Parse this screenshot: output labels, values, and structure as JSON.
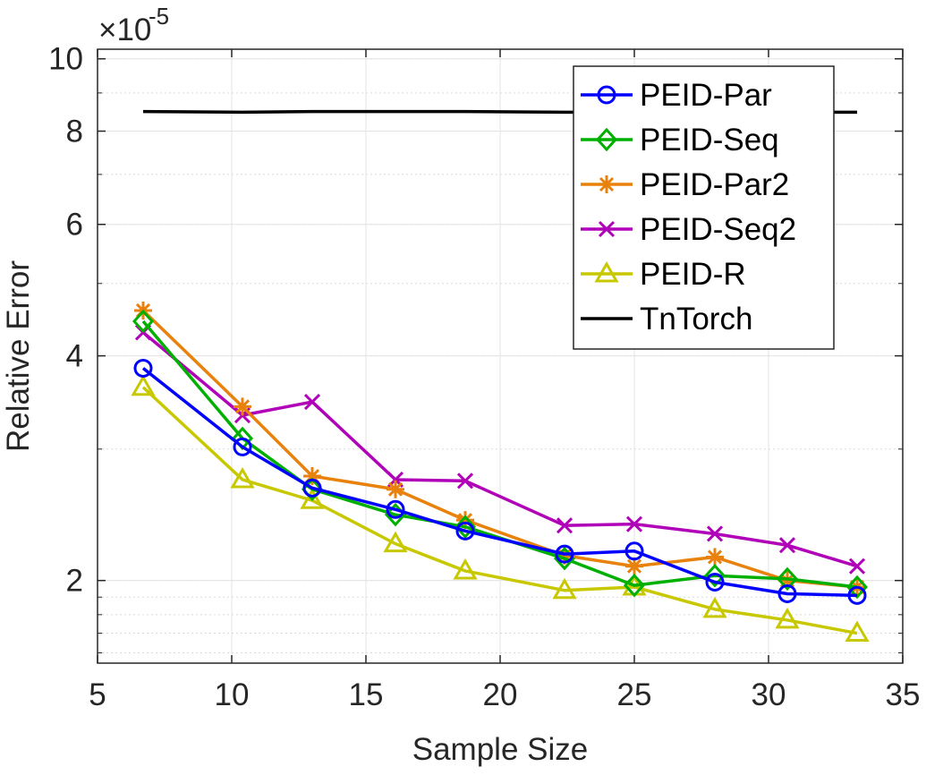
{
  "chart_data": {
    "type": "line",
    "title": "",
    "xlabel": "Sample Size",
    "ylabel": "Relative Error",
    "exponent_label": "×10",
    "exponent_power": "-5",
    "xlim": [
      5,
      35
    ],
    "ylim": [
      1.55,
      10.3
    ],
    "yscale": "log",
    "grid": true,
    "legend_location": "top-right",
    "x_ticks": [
      5,
      10,
      15,
      20,
      25,
      30,
      35
    ],
    "x_tick_labels": [
      "5",
      "10",
      "15",
      "20",
      "25",
      "30",
      "35"
    ],
    "y_ticks": [
      2,
      4,
      6,
      8,
      10
    ],
    "y_tick_labels": [
      "2",
      "4",
      "6",
      "8",
      "10"
    ],
    "y_minor_ticks": [
      1.6,
      1.7,
      1.8,
      1.9,
      2,
      3,
      4,
      5,
      6,
      7,
      8,
      9,
      10
    ],
    "x": [
      6.7,
      10.4,
      13,
      16.1,
      18.7,
      22.4,
      25,
      28,
      30.7,
      33.3
    ],
    "series": [
      {
        "name": "PEID-Par",
        "color": "#0000ff",
        "marker": "circle",
        "values": [
          3.85,
          3.02,
          2.66,
          2.49,
          2.33,
          2.17,
          2.19,
          1.99,
          1.92,
          1.91
        ]
      },
      {
        "name": "PEID-Seq",
        "color": "#00b000",
        "marker": "diamond",
        "values": [
          4.45,
          3.1,
          2.65,
          2.45,
          2.36,
          2.14,
          1.97,
          2.03,
          2.01,
          1.96
        ]
      },
      {
        "name": "PEID-Par2",
        "color": "#e8820c",
        "marker": "asterisk",
        "values": [
          4.6,
          3.42,
          2.76,
          2.65,
          2.41,
          2.16,
          2.09,
          2.15,
          2.0,
          1.96
        ]
      },
      {
        "name": "PEID-Seq2",
        "color": "#b000b8",
        "marker": "x",
        "values": [
          4.3,
          3.33,
          3.47,
          2.73,
          2.72,
          2.37,
          2.38,
          2.31,
          2.23,
          2.09
        ]
      },
      {
        "name": "PEID-R",
        "color": "#c8c800",
        "marker": "triangle",
        "values": [
          3.63,
          2.73,
          2.56,
          2.24,
          2.06,
          1.94,
          1.96,
          1.83,
          1.77,
          1.7
        ]
      },
      {
        "name": "TnTorch",
        "color": "#000000",
        "marker": "none",
        "values": [
          8.5,
          8.48,
          8.5,
          8.5,
          8.5,
          8.48,
          8.48,
          8.48,
          8.48,
          8.48
        ]
      }
    ]
  }
}
